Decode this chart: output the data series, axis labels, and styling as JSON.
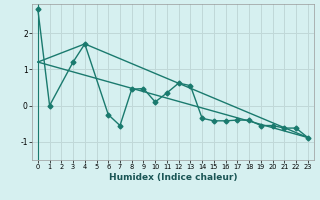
{
  "xlabel": "Humidex (Indice chaleur)",
  "bg_color": "#d6f0f0",
  "grid_color": "#c0d8d8",
  "line_color": "#1a7a6e",
  "xlim": [
    -0.5,
    23.5
  ],
  "ylim": [
    -1.5,
    2.8
  ],
  "yticks": [
    -1,
    0,
    1,
    2
  ],
  "xticks": [
    0,
    1,
    2,
    3,
    4,
    5,
    6,
    7,
    8,
    9,
    10,
    11,
    12,
    13,
    14,
    15,
    16,
    17,
    18,
    19,
    20,
    21,
    22,
    23
  ],
  "series1_x": [
    0,
    1,
    3,
    4,
    6,
    7,
    8,
    9,
    10,
    11,
    12,
    13,
    14,
    15,
    16,
    17,
    18,
    19,
    20,
    21,
    22,
    23
  ],
  "series1_y": [
    2.65,
    0.0,
    1.2,
    1.7,
    -0.25,
    -0.55,
    0.45,
    0.47,
    0.1,
    0.35,
    0.62,
    0.55,
    -0.35,
    -0.42,
    -0.42,
    -0.4,
    -0.4,
    -0.55,
    -0.55,
    -0.62,
    -0.62,
    -0.88
  ],
  "series2_x": [
    0,
    23
  ],
  "series2_y": [
    1.2,
    -0.88
  ],
  "series3_x": [
    0,
    4,
    23
  ],
  "series3_y": [
    1.2,
    1.7,
    -0.88
  ],
  "marker_size": 2.5,
  "linewidth": 1.0
}
